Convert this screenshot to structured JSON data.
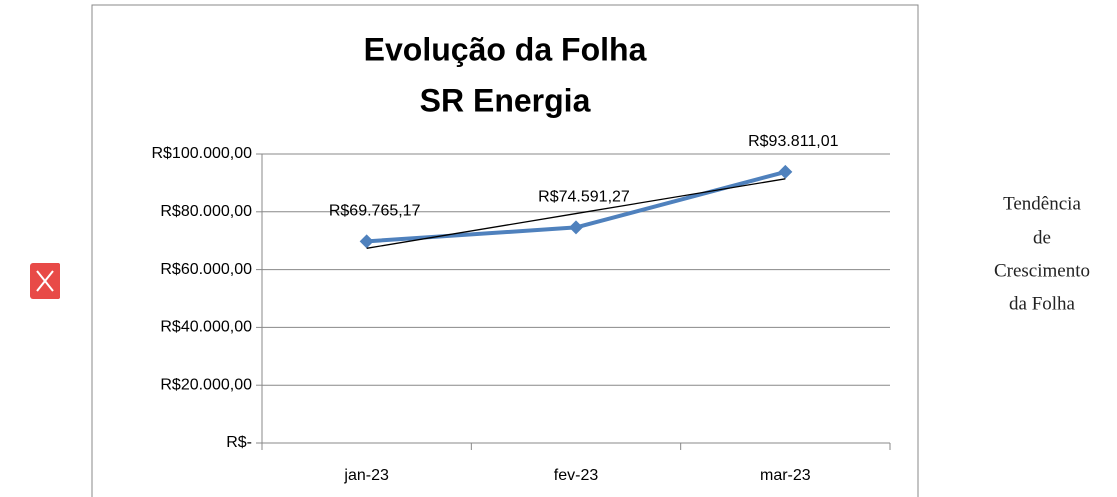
{
  "chart_data": {
    "type": "line",
    "title": "Evolução da Folha",
    "subtitle": "SR Energia",
    "categories": [
      "jan-23",
      "fev-23",
      "mar-23"
    ],
    "series": [
      {
        "name": "Evolução da Folha",
        "color": "#4f81bd",
        "values": [
          69765.17,
          74591.27,
          93811.01
        ],
        "value_labels": [
          "R$69.765,17",
          "R$74.591,27",
          "R$93.811,01"
        ]
      }
    ],
    "trendline": {
      "color": "#000000",
      "values": [
        67366,
        79389,
        91412
      ]
    },
    "ylim": [
      0,
      100000
    ],
    "yticks": [
      {
        "value": 0,
        "label": "R$-"
      },
      {
        "value": 20000,
        "label": "R$20.000,00"
      },
      {
        "value": 40000,
        "label": "R$40.000,00"
      },
      {
        "value": 60000,
        "label": "R$60.000,00"
      },
      {
        "value": 80000,
        "label": "R$80.000,00"
      },
      {
        "value": 100000,
        "label": "R$100.000,00"
      }
    ],
    "grid": true
  },
  "side_note": [
    "Tendência",
    "de",
    "Crescimento",
    "da Folha"
  ]
}
